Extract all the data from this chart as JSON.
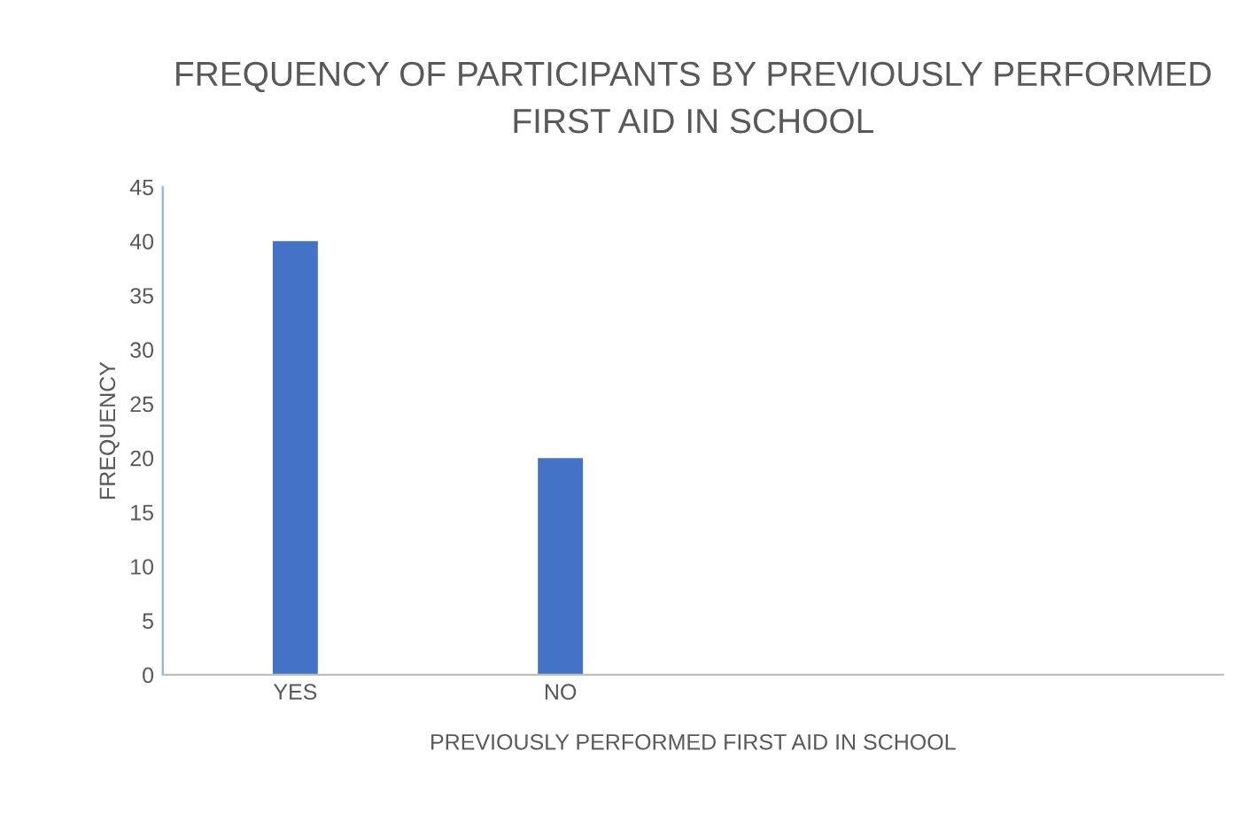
{
  "chart_data": {
    "type": "bar",
    "title": "FREQUENCY OF PARTICIPANTS BY PREVIOUSLY PERFORMED\nFIRST AID IN SCHOOL",
    "xlabel": "PREVIOUSLY PERFORMED FIRST AID IN SCHOOL",
    "ylabel": "FREQUENCY",
    "categories": [
      "YES",
      "NO",
      null,
      null
    ],
    "values": [
      40,
      20,
      null,
      null
    ],
    "color": "#4472c4",
    "ylim": [
      0,
      45
    ],
    "yticks": [
      0,
      5,
      10,
      15,
      20,
      25,
      30,
      35,
      40,
      45
    ]
  }
}
